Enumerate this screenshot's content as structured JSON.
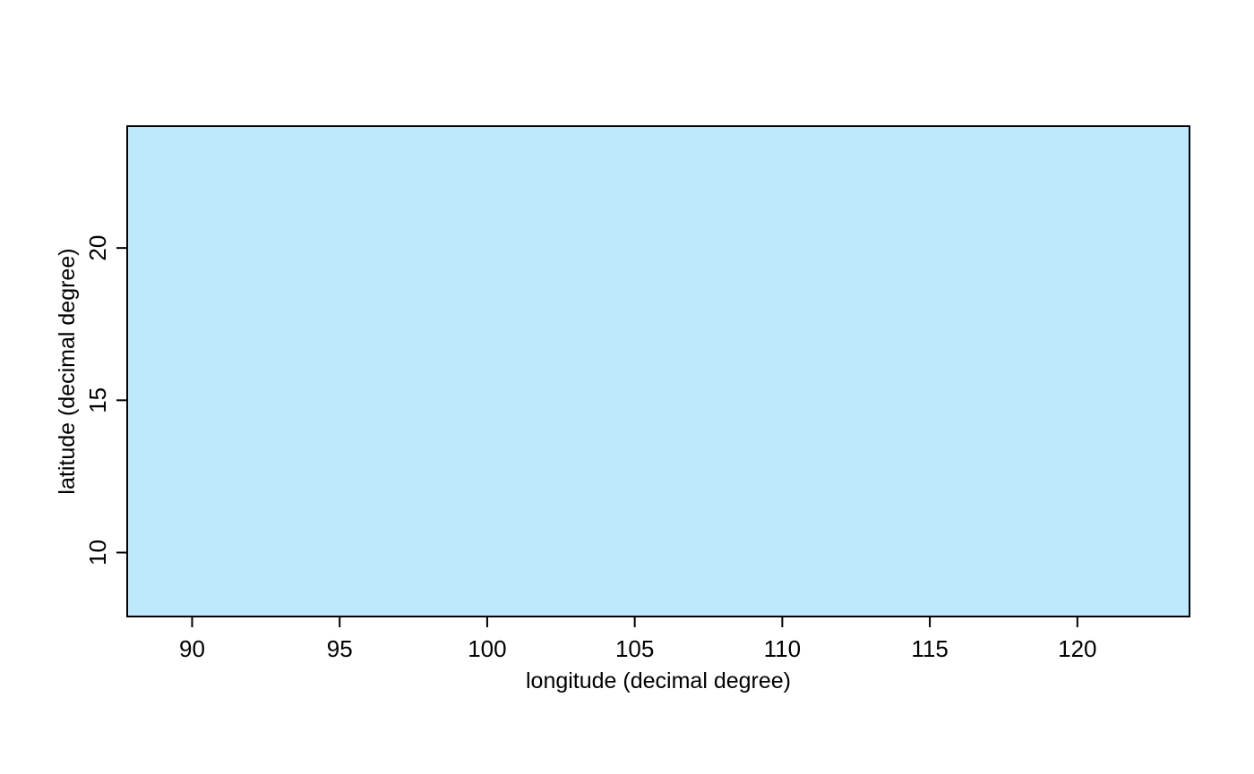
{
  "chart_data": {
    "type": "scatter",
    "title": "",
    "xlabel": "longitude (decimal degree)",
    "ylabel": "latitude (decimal degree)",
    "xlim": [
      87.8,
      123.8
    ],
    "ylim": [
      7.9,
      24.0
    ],
    "xticks": [
      90,
      95,
      100,
      105,
      110,
      115,
      120
    ],
    "yticks": [
      10,
      15,
      20
    ],
    "series": [],
    "grid": false,
    "background": "#bee9fc",
    "frame_color": "#000000"
  }
}
